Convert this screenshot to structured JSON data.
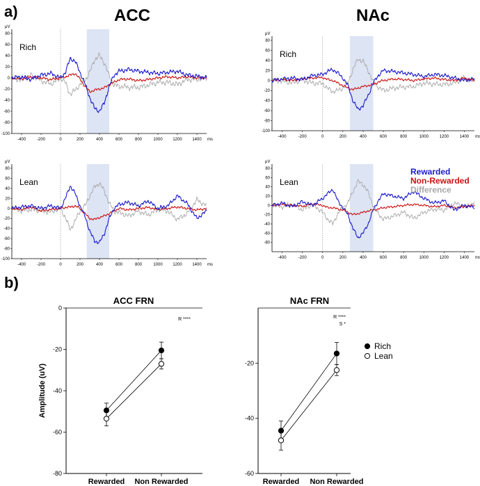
{
  "panel_labels": {
    "a": "a)",
    "b": "b)"
  },
  "colors": {
    "rewarded": "#1a1acc",
    "nonrewarded": "#cc1111",
    "difference": "#a8a8a8",
    "shade": "#dde4f4",
    "axis": "#000000"
  },
  "chart_data": [
    {
      "type": "line",
      "id": "erp-acc-rich",
      "region": "ACC",
      "condition": "Rich",
      "title": "ACC",
      "row_label": "Rich",
      "ylabel": "μV",
      "xlabel": "ms",
      "ylim": [
        -100,
        80
      ],
      "yticks": [
        80,
        60,
        40,
        20,
        0,
        -20,
        -40,
        -60,
        -80,
        -100
      ],
      "xlim": [
        -500,
        1500
      ],
      "xticks": [
        -400,
        -200,
        0,
        200,
        400,
        600,
        800,
        1000,
        1200,
        1400
      ],
      "shaded_window": [
        270,
        500
      ],
      "x": [
        -500,
        -400,
        -300,
        -200,
        -100,
        0,
        50,
        100,
        150,
        200,
        250,
        300,
        350,
        400,
        450,
        500,
        550,
        600,
        700,
        800,
        900,
        1000,
        1100,
        1200,
        1300,
        1400,
        1500
      ],
      "series": [
        {
          "name": "Rewarded",
          "values": [
            0,
            2,
            -3,
            5,
            8,
            0,
            10,
            35,
            30,
            10,
            -10,
            -35,
            -55,
            -60,
            -45,
            -15,
            5,
            12,
            15,
            12,
            10,
            8,
            10,
            12,
            5,
            3,
            0
          ]
        },
        {
          "name": "Non-Rewarded",
          "values": [
            0,
            -2,
            2,
            0,
            -3,
            0,
            2,
            5,
            8,
            -2,
            -15,
            -25,
            -22,
            -20,
            -18,
            -12,
            -8,
            -3,
            -2,
            -5,
            -3,
            0,
            2,
            0,
            2,
            0,
            0
          ]
        },
        {
          "name": "Difference",
          "values": [
            0,
            -4,
            5,
            -5,
            -11,
            0,
            -8,
            -30,
            -22,
            -12,
            -5,
            10,
            33,
            40,
            27,
            3,
            -13,
            -15,
            -17,
            -17,
            -13,
            -8,
            -8,
            -12,
            -3,
            -3,
            0
          ]
        }
      ]
    },
    {
      "type": "line",
      "id": "erp-nac-rich",
      "region": "NAc",
      "condition": "Rich",
      "title": "NAc",
      "row_label": "Rich",
      "ylabel": "μV",
      "xlabel": "ms",
      "ylim": [
        -100,
        80
      ],
      "yticks": [
        80,
        60,
        40,
        20,
        0,
        -20,
        -40,
        -60,
        -80,
        -100
      ],
      "xlim": [
        -500,
        1500
      ],
      "xticks": [
        -400,
        -200,
        0,
        200,
        400,
        600,
        800,
        1000,
        1200,
        1400
      ],
      "shaded_window": [
        270,
        500
      ],
      "x": [
        -500,
        -400,
        -300,
        -200,
        -100,
        0,
        50,
        100,
        150,
        200,
        250,
        300,
        350,
        400,
        450,
        500,
        550,
        600,
        700,
        800,
        900,
        1000,
        1100,
        1200,
        1300,
        1400,
        1500
      ],
      "series": [
        {
          "name": "Rewarded",
          "values": [
            0,
            3,
            5,
            2,
            10,
            12,
            18,
            22,
            15,
            5,
            -10,
            -40,
            -58,
            -50,
            -30,
            -5,
            10,
            20,
            18,
            15,
            12,
            8,
            12,
            10,
            5,
            0,
            3
          ]
        },
        {
          "name": "Non-Rewarded",
          "values": [
            0,
            2,
            0,
            3,
            5,
            6,
            2,
            0,
            -5,
            -10,
            -15,
            -18,
            -15,
            -12,
            -10,
            -8,
            -3,
            0,
            3,
            2,
            0,
            3,
            5,
            2,
            0,
            5,
            0
          ]
        },
        {
          "name": "Difference",
          "values": [
            0,
            -1,
            -5,
            1,
            -5,
            -6,
            -16,
            -22,
            -20,
            -15,
            -5,
            22,
            43,
            38,
            20,
            -3,
            -13,
            -20,
            -15,
            -13,
            -12,
            -5,
            -7,
            -8,
            -5,
            5,
            -3
          ]
        }
      ]
    },
    {
      "type": "line",
      "id": "erp-acc-lean",
      "region": "ACC",
      "condition": "Lean",
      "title": "",
      "row_label": "Lean",
      "ylabel": "μV",
      "xlabel": "ms",
      "ylim": [
        -100,
        80
      ],
      "yticks": [
        80,
        60,
        40,
        20,
        0,
        -20,
        -40,
        -60,
        -80,
        -100
      ],
      "xlim": [
        -500,
        1500
      ],
      "xticks": [
        -400,
        -200,
        0,
        200,
        400,
        600,
        800,
        1000,
        1200,
        1400
      ],
      "shaded_window": [
        270,
        500
      ],
      "x": [
        -500,
        -400,
        -300,
        -200,
        -100,
        0,
        50,
        100,
        150,
        200,
        250,
        300,
        350,
        400,
        450,
        500,
        550,
        600,
        700,
        800,
        900,
        1000,
        1100,
        1200,
        1300,
        1400,
        1500
      ],
      "series": [
        {
          "name": "Rewarded",
          "values": [
            0,
            3,
            5,
            0,
            5,
            0,
            20,
            45,
            30,
            5,
            -15,
            -45,
            -65,
            -68,
            -50,
            -20,
            0,
            8,
            12,
            5,
            15,
            0,
            5,
            25,
            10,
            -20,
            -5
          ]
        },
        {
          "name": "Non-Rewarded",
          "values": [
            0,
            -2,
            3,
            -5,
            -2,
            0,
            2,
            3,
            5,
            0,
            -10,
            -20,
            -22,
            -18,
            -15,
            -10,
            -5,
            0,
            -3,
            0,
            2,
            -2,
            0,
            3,
            0,
            -3,
            0
          ]
        },
        {
          "name": "Difference",
          "values": [
            0,
            -5,
            -2,
            -5,
            -7,
            0,
            -18,
            -42,
            -25,
            -5,
            5,
            25,
            43,
            50,
            35,
            10,
            -5,
            -8,
            -15,
            -5,
            -13,
            -2,
            -5,
            -22,
            -10,
            17,
            5
          ]
        }
      ]
    },
    {
      "type": "line",
      "id": "erp-nac-lean",
      "region": "NAc",
      "condition": "Lean",
      "title": "",
      "row_label": "Lean",
      "ylabel": "μV",
      "xlabel": "ms",
      "ylim": [
        -100,
        80
      ],
      "yticks": [
        80,
        60,
        40,
        20,
        0,
        -20,
        -40,
        -60,
        -80
      ],
      "xlim": [
        -500,
        1500
      ],
      "xticks": [
        -400,
        -200,
        0,
        200,
        400,
        600,
        800,
        1000,
        1200,
        1400
      ],
      "shaded_window": [
        270,
        500
      ],
      "x": [
        -500,
        -400,
        -300,
        -200,
        -100,
        0,
        50,
        100,
        150,
        200,
        250,
        300,
        350,
        400,
        450,
        500,
        550,
        600,
        700,
        800,
        900,
        1000,
        1100,
        1200,
        1300,
        1400,
        1500
      ],
      "series": [
        {
          "name": "Rewarded",
          "values": [
            0,
            5,
            -3,
            8,
            0,
            15,
            25,
            35,
            10,
            -5,
            -20,
            -50,
            -70,
            -60,
            -40,
            -10,
            10,
            25,
            20,
            15,
            30,
            15,
            5,
            10,
            -10,
            0,
            -5
          ]
        },
        {
          "name": "Non-Rewarded",
          "values": [
            0,
            2,
            0,
            -2,
            3,
            0,
            -5,
            -5,
            -8,
            -10,
            -15,
            -20,
            -18,
            -15,
            -12,
            -10,
            -8,
            -5,
            -3,
            0,
            2,
            0,
            -3,
            0,
            -5,
            -3,
            0
          ]
        },
        {
          "name": "Difference",
          "values": [
            0,
            -3,
            3,
            -10,
            3,
            -15,
            -30,
            -40,
            -18,
            -5,
            5,
            30,
            52,
            45,
            28,
            0,
            -18,
            -30,
            -23,
            -15,
            -28,
            -15,
            -8,
            -10,
            5,
            -3,
            5
          ]
        }
      ]
    },
    {
      "type": "line",
      "id": "frn-acc",
      "title": "ACC FRN",
      "ylabel": "Amplitude (uV)",
      "xlabel": "",
      "categories": [
        "Rewarded",
        "Non Rewarded"
      ],
      "ylim": [
        -80,
        0
      ],
      "yticks": [
        0,
        -20,
        -40,
        -60,
        -80
      ],
      "ytick_labels": [
        "0",
        "-20",
        "-40",
        "-60",
        "-80"
      ],
      "annotation": "R ****",
      "series": [
        {
          "name": "Rich",
          "marker": "filled",
          "values": [
            -49.5,
            -20.5
          ],
          "errors": [
            3.5,
            4.0
          ]
        },
        {
          "name": "Lean",
          "marker": "open",
          "values": [
            -53.5,
            -27.0
          ],
          "errors": [
            3.5,
            2.5
          ]
        }
      ]
    },
    {
      "type": "line",
      "id": "frn-nac",
      "title": "NAc FRN",
      "ylabel": "",
      "xlabel": "",
      "categories": [
        "Rewarded",
        "Non Rewarded"
      ],
      "ylim": [
        -60,
        0
      ],
      "yticks": [
        -20,
        -40,
        -60
      ],
      "ytick_labels": [
        "-20",
        "-40",
        "-60"
      ],
      "annotation": "R ****",
      "annotation2": "S *",
      "series": [
        {
          "name": "Rich",
          "marker": "filled",
          "values": [
            -44.5,
            -16.5
          ],
          "errors": [
            3.5,
            4.0
          ]
        },
        {
          "name": "Lean",
          "marker": "open",
          "values": [
            -48.0,
            -22.5
          ],
          "errors": [
            3.5,
            2.0
          ]
        }
      ]
    }
  ],
  "erp_legend": [
    {
      "label": "Rewarded",
      "color": "#1a1acc"
    },
    {
      "label": "Non-Rewarded",
      "color": "#cc1111"
    },
    {
      "label": "Difference",
      "color": "#a8a8a8"
    }
  ],
  "frn_legend": [
    {
      "label": "Rich",
      "marker": "filled"
    },
    {
      "label": "Lean",
      "marker": "open"
    }
  ]
}
